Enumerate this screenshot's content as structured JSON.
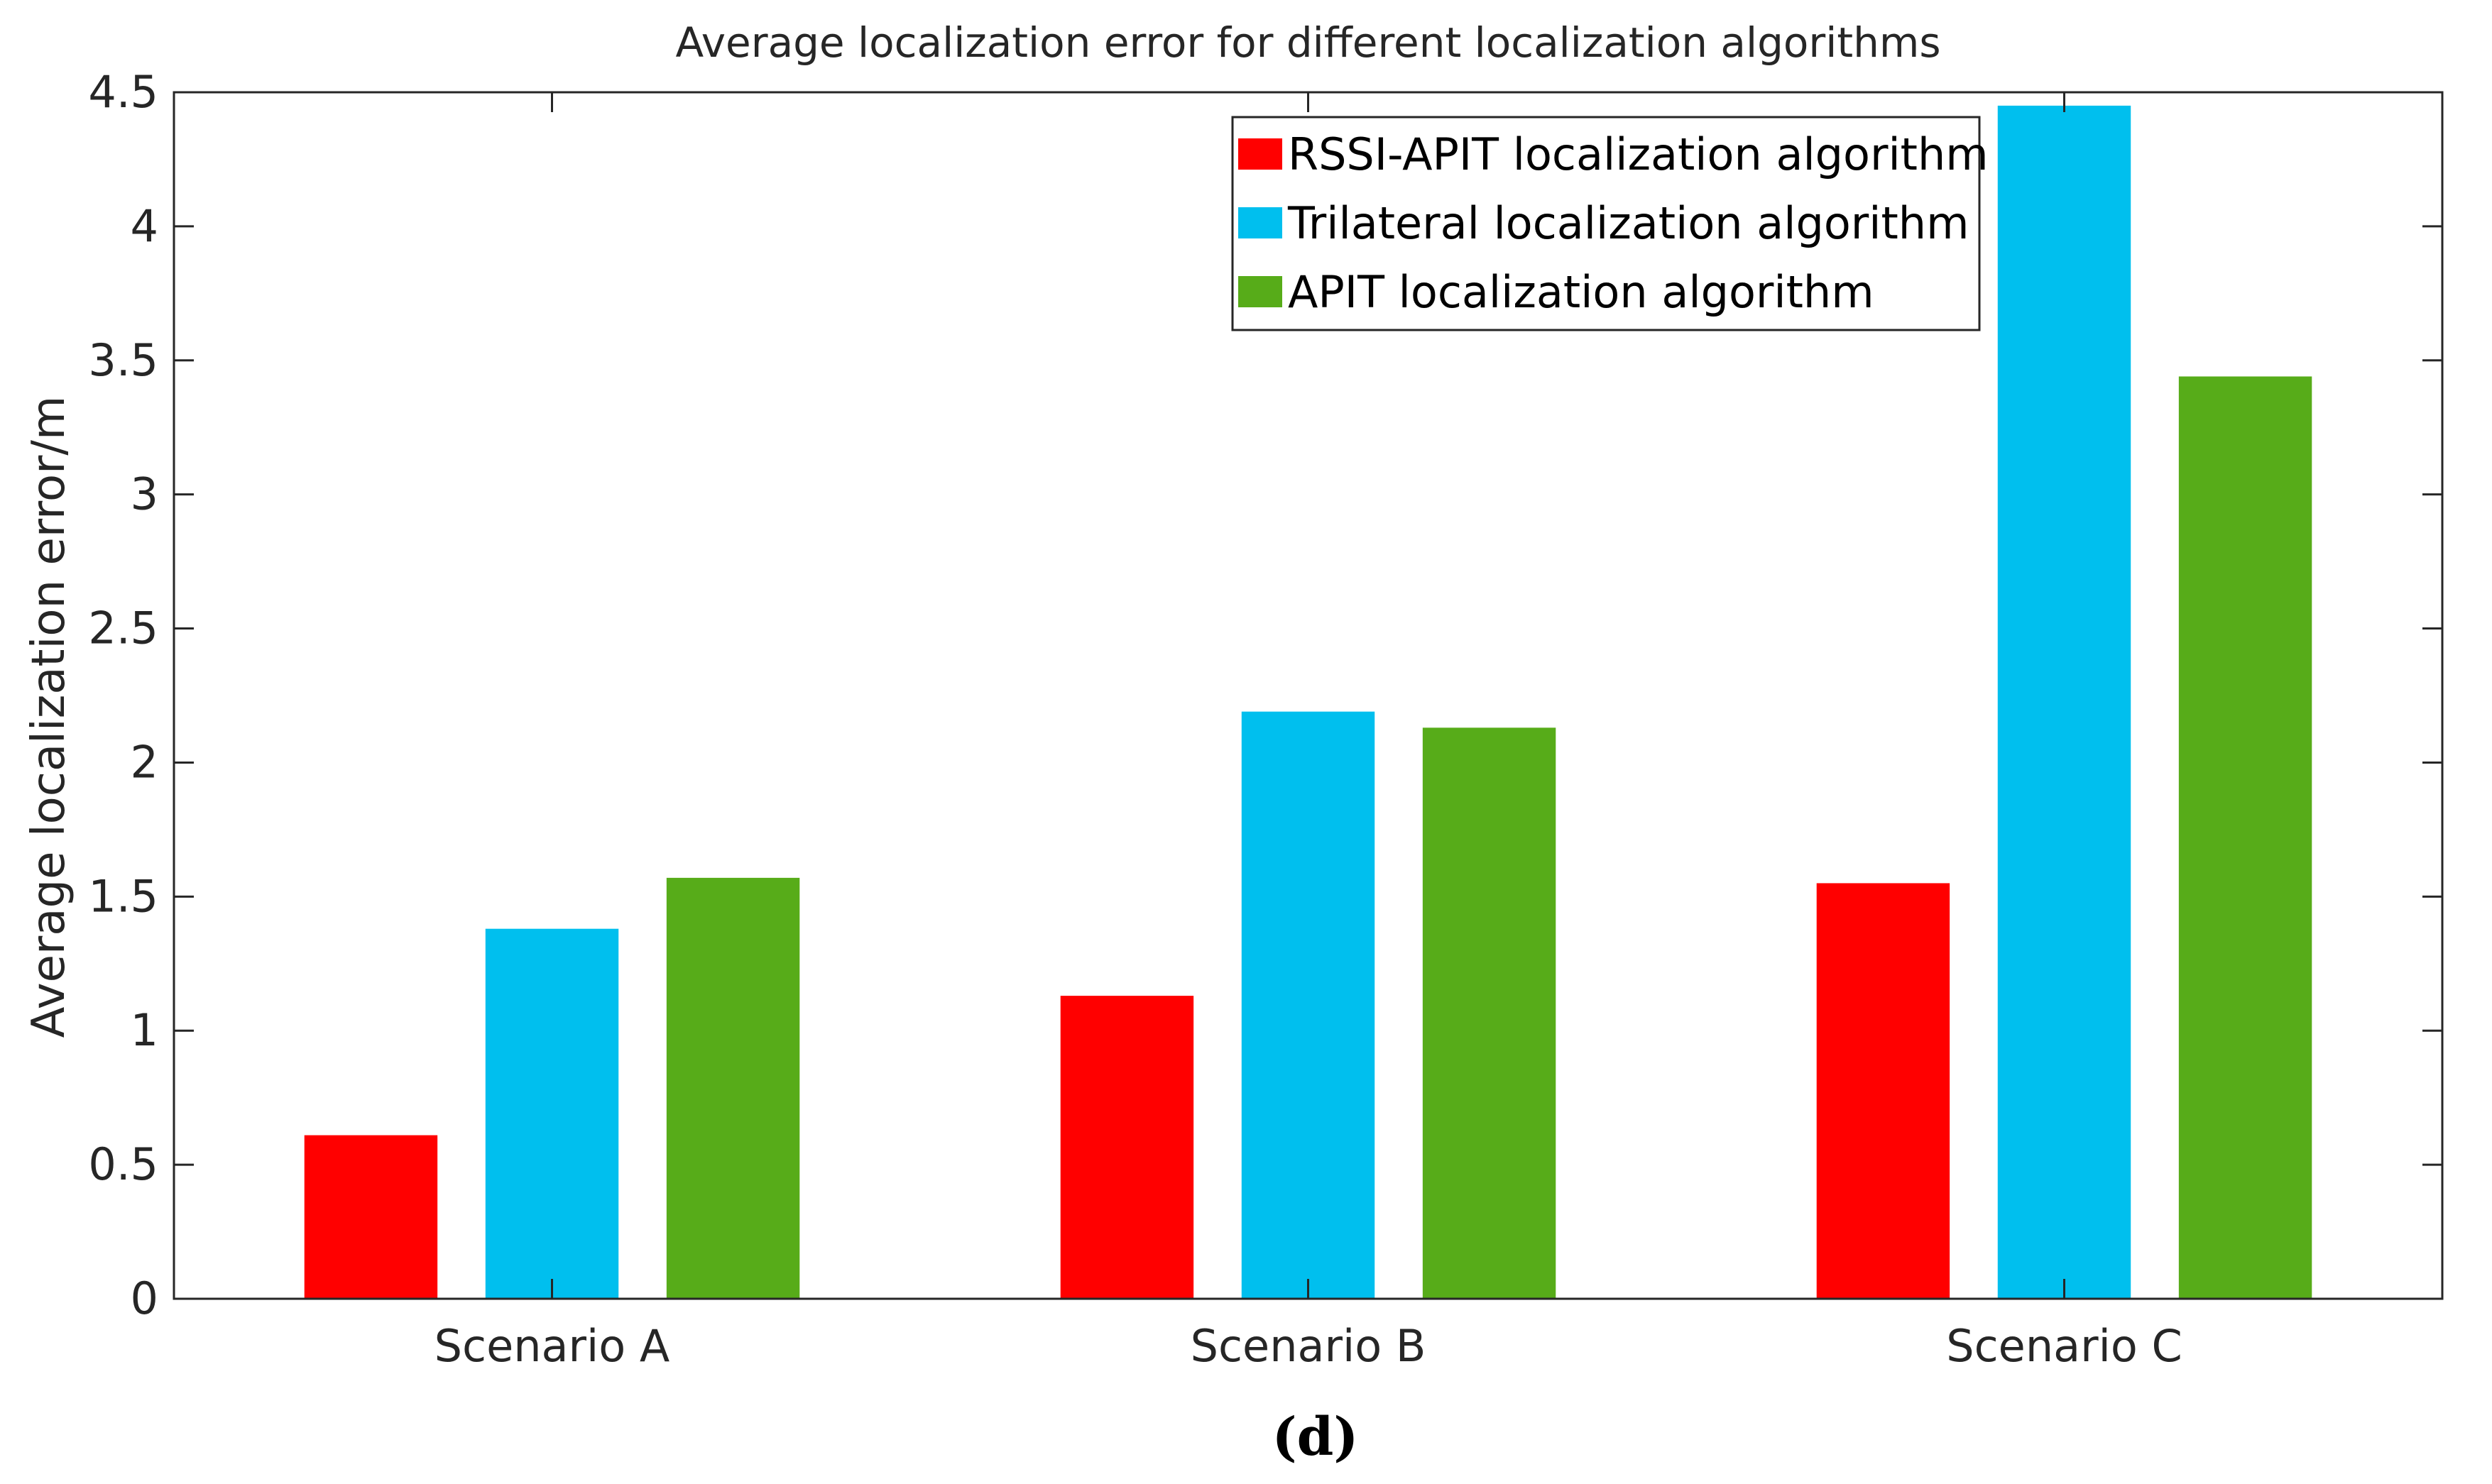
{
  "chart_data": {
    "type": "bar",
    "title": "Average localization error for different localization algorithms",
    "xlabel": "",
    "ylabel": "Average localization error/m",
    "categories": [
      "Scenario A",
      "Scenario B",
      "Scenario C"
    ],
    "series": [
      {
        "name": "RSSI-APIT localization algorithm",
        "color": "#ff0000",
        "values": [
          0.61,
          1.13,
          1.55
        ]
      },
      {
        "name": "Trilateral localization algorithm",
        "color": "#00bfee",
        "values": [
          1.38,
          2.19,
          4.45
        ]
      },
      {
        "name": "APIT localization algorithm",
        "color": "#57ac19",
        "values": [
          1.57,
          2.13,
          3.44
        ]
      }
    ],
    "ylim": [
      0,
      4.5
    ],
    "yticks": [
      0,
      0.5,
      1,
      1.5,
      2,
      2.5,
      3,
      3.5,
      4,
      4.5
    ],
    "ytick_labels": [
      "0",
      "0.5",
      "1",
      "1.5",
      "2",
      "2.5",
      "3",
      "3.5",
      "4",
      "4.5"
    ],
    "grid": false,
    "legend_position": "top-right"
  },
  "panel_label": "(d)"
}
